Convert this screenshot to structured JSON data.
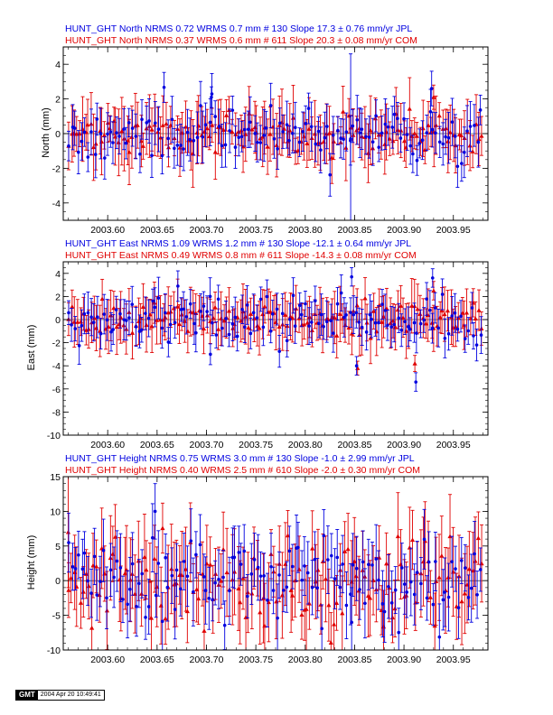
{
  "colors": {
    "jpl": "#0000e0",
    "com": "#e00000",
    "axis": "#000000"
  },
  "chart_data": [
    {
      "type": "scatter",
      "title_jpl": "HUNT_GHT North NRMS 0.72 WRMS  0.7 mm # 130 Slope   17.3 ±  0.76 mm/yr JPL",
      "title_com": "HUNT_GHT North NRMS 0.37 WRMS  0.6 mm # 611 Slope   20.3 ±  0.08 mm/yr COM",
      "xlabel": "",
      "ylabel": "North (mm)",
      "xlim": [
        2003.555,
        2003.985
      ],
      "ylim": [
        -5,
        5
      ],
      "xticks": [
        "2003.60",
        "2003.65",
        "2003.70",
        "2003.75",
        "2003.80",
        "2003.85",
        "2003.90",
        "2003.95"
      ],
      "yticks": [
        "-4",
        "-2",
        "0",
        "2",
        "4"
      ],
      "series": [
        {
          "name": "JPL",
          "n": 130,
          "marker": "circle",
          "noise": 0.75,
          "err": [
            0.8,
            1.5
          ],
          "seed": 11,
          "outliers": [
            {
              "x": 2003.846,
              "y": -0.3,
              "err": 4.9
            },
            {
              "x": 2003.705,
              "y": 2.1,
              "err": 0.6
            },
            {
              "x": 2003.928,
              "y": 2.6,
              "err": 1.0
            }
          ]
        },
        {
          "name": "COM",
          "n": 611,
          "marker": "triangle",
          "noise": 0.55,
          "err": [
            0.7,
            2.0
          ],
          "seed": 23,
          "outliers": [
            {
              "x": 2003.93,
              "y": 2.1,
              "err": 0.7
            }
          ]
        }
      ]
    },
    {
      "type": "scatter",
      "title_jpl": "HUNT_GHT East NRMS 1.09 WRMS  1.2 mm # 130 Slope  -12.1 ±  0.64 mm/yr JPL",
      "title_com": "HUNT_GHT East NRMS 0.49 WRMS  0.8 mm # 611 Slope  -14.3 ±  0.08 mm/yr COM",
      "xlabel": "",
      "ylabel": "East (mm)",
      "xlim": [
        2003.555,
        2003.985
      ],
      "ylim": [
        -10,
        5
      ],
      "xticks": [
        "2003.60",
        "2003.65",
        "2003.70",
        "2003.75",
        "2003.80",
        "2003.85",
        "2003.90",
        "2003.95"
      ],
      "yticks": [
        "-10",
        "-8",
        "-6",
        "-4",
        "-2",
        "0",
        "2",
        "4"
      ],
      "series": [
        {
          "name": "JPL",
          "n": 130,
          "marker": "circle",
          "noise": 1.1,
          "err": [
            1.0,
            1.8
          ],
          "seed": 37,
          "outliers": [
            {
              "x": 2003.847,
              "y": 3.7,
              "err": 0.8
            },
            {
              "x": 2003.852,
              "y": -4.0,
              "err": 0.8
            },
            {
              "x": 2003.912,
              "y": -5.4,
              "err": 0.8
            },
            {
              "x": 2003.929,
              "y": 3.6,
              "err": 0.8
            },
            {
              "x": 2003.704,
              "y": -3.0,
              "err": 0.9
            }
          ]
        },
        {
          "name": "COM",
          "n": 611,
          "marker": "triangle",
          "noise": 0.7,
          "err": [
            1.2,
            2.4
          ],
          "seed": 41,
          "outliers": [
            {
              "x": 2003.853,
              "y": -4.2,
              "err": 0.6
            },
            {
              "x": 2003.911,
              "y": -3.8,
              "err": 0.7
            },
            {
              "x": 2003.93,
              "y": 2.5,
              "err": 0.8
            }
          ]
        }
      ]
    },
    {
      "type": "scatter",
      "title_jpl": "HUNT_GHT Height NRMS 0.75 WRMS  3.0 mm # 130 Slope   -1.0 ±  2.99 mm/yr JPL",
      "title_com": "HUNT_GHT Height NRMS 0.40 WRMS  2.5 mm # 610 Slope   -2.0 ±  0.30 mm/yr COM",
      "xlabel": "",
      "ylabel": "Height (mm)",
      "xlim": [
        2003.555,
        2003.985
      ],
      "ylim": [
        -10,
        15
      ],
      "xticks": [
        "2003.60",
        "2003.65",
        "2003.70",
        "2003.75",
        "2003.80",
        "2003.85",
        "2003.90",
        "2003.95"
      ],
      "yticks": [
        "-10",
        "-5",
        "0",
        "5",
        "10",
        "15"
      ],
      "series": [
        {
          "name": "JPL",
          "n": 130,
          "marker": "circle",
          "noise": 3.2,
          "err": [
            3.0,
            5.0
          ],
          "seed": 53,
          "outliers": [
            {
              "x": 2003.648,
              "y": 10.0,
              "err": 4.0
            },
            {
              "x": 2003.847,
              "y": -6.0,
              "err": 5.0
            }
          ]
        },
        {
          "name": "COM",
          "n": 610,
          "marker": "triangle",
          "noise": 2.8,
          "err": [
            3.5,
            6.5
          ],
          "seed": 67,
          "outliers": [
            {
              "x": 2003.56,
              "y": 7.0,
              "err": 8.0
            }
          ]
        }
      ]
    }
  ],
  "footer": {
    "logo": "GMT",
    "timestamp": "2004 Apr 20 10:49:41"
  }
}
